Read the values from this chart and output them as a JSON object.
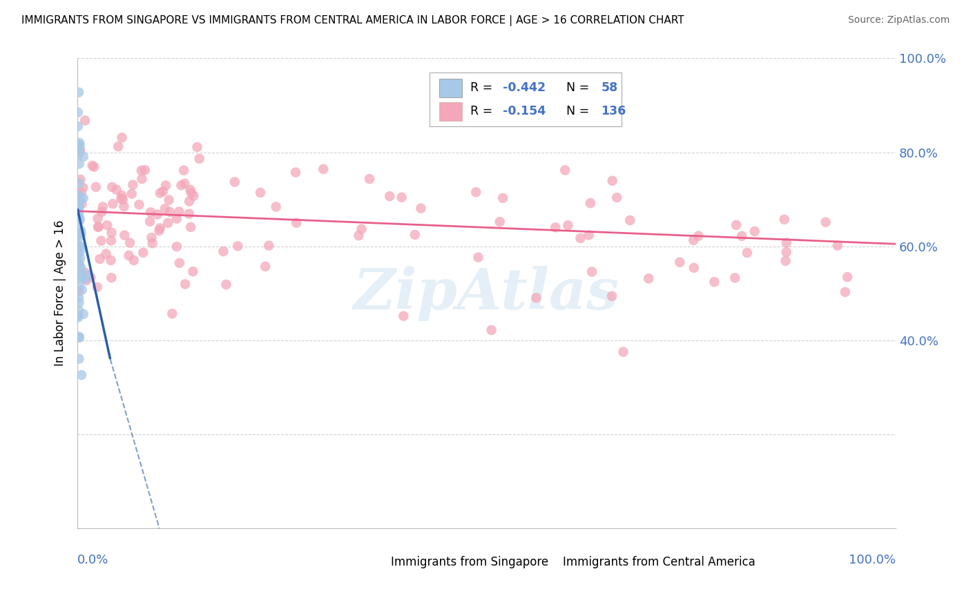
{
  "title": "IMMIGRANTS FROM SINGAPORE VS IMMIGRANTS FROM CENTRAL AMERICA IN LABOR FORCE | AGE > 16 CORRELATION CHART",
  "source": "Source: ZipAtlas.com",
  "ylabel": "In Labor Force | Age > 16",
  "legend_label1": "Immigrants from Singapore",
  "legend_label2": "Immigrants from Central America",
  "singapore_color": "#a8c8e8",
  "central_america_color": "#f4a7b9",
  "singapore_line_color": "#2c5fa8",
  "central_america_line_color": "#e8608a",
  "background_color": "#ffffff",
  "grid_color": "#cccccc",
  "axis_label_color": "#4472c4",
  "r_value_color": "#4472c4",
  "xlim": [
    0.0,
    1.0
  ],
  "ylim": [
    0.0,
    1.0
  ],
  "watermark": "ZipAtlas",
  "r_singapore": -0.442,
  "n_singapore": 58,
  "r_central": -0.154,
  "n_central": 136,
  "sing_line_start_x": 0.0,
  "sing_line_start_y": 0.68,
  "sing_line_end_x": 0.04,
  "sing_line_end_y": 0.36,
  "sing_line_dash_end_x": 0.1,
  "sing_line_dash_end_y": 0.0,
  "cent_line_start_x": 0.0,
  "cent_line_start_y": 0.675,
  "cent_line_end_x": 1.0,
  "cent_line_end_y": 0.605,
  "right_yticks": [
    0.4,
    0.6,
    0.8,
    1.0
  ],
  "right_yticklabels": [
    "40.0%",
    "60.0%",
    "80.0%",
    "100.0%"
  ]
}
